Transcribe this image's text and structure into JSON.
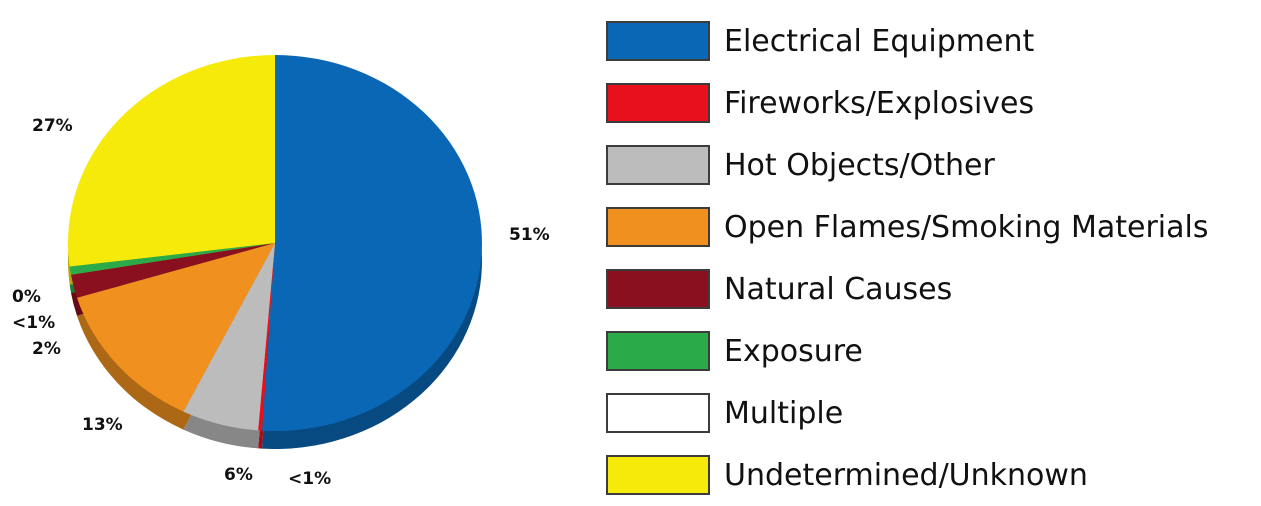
{
  "chart_data": {
    "type": "pie",
    "series": [
      {
        "name": "Electrical Equipment",
        "value": 51,
        "label": "51%",
        "color": "#0a67b5"
      },
      {
        "name": "Fireworks/Explosives",
        "value": 0.3,
        "label": "<1%",
        "color": "#e8101c"
      },
      {
        "name": "Hot Objects/Other",
        "value": 6,
        "label": "6%",
        "color": "#bcbcbc"
      },
      {
        "name": "Open Flames/Smoking Materials",
        "value": 13,
        "label": "13%",
        "color": "#f0901e"
      },
      {
        "name": "Natural Causes",
        "value": 2,
        "label": "2%",
        "color": "#8a1020"
      },
      {
        "name": "Exposure",
        "value": 0.7,
        "label": "<1%",
        "color": "#2aaa48"
      },
      {
        "name": "Multiple",
        "value": 0,
        "label": "0%",
        "color": "#ffffff"
      },
      {
        "name": "Undetermined/Unknown",
        "value": 27,
        "label": "27%",
        "color": "#f5ea0a"
      }
    ],
    "legend_position": "right"
  },
  "legend": {
    "items": [
      {
        "label": "Electrical Equipment",
        "color": "#0a67b5"
      },
      {
        "label": "Fireworks/Explosives",
        "color": "#e8101c"
      },
      {
        "label": "Hot Objects/Other",
        "color": "#bcbcbc"
      },
      {
        "label": "Open Flames/Smoking Materials",
        "color": "#f0901e"
      },
      {
        "label": "Natural Causes",
        "color": "#8a1020"
      },
      {
        "label": "Exposure",
        "color": "#2aaa48"
      },
      {
        "label": "Multiple",
        "color": "#ffffff"
      },
      {
        "label": "Undetermined/Unknown",
        "color": "#f5ea0a"
      }
    ]
  }
}
